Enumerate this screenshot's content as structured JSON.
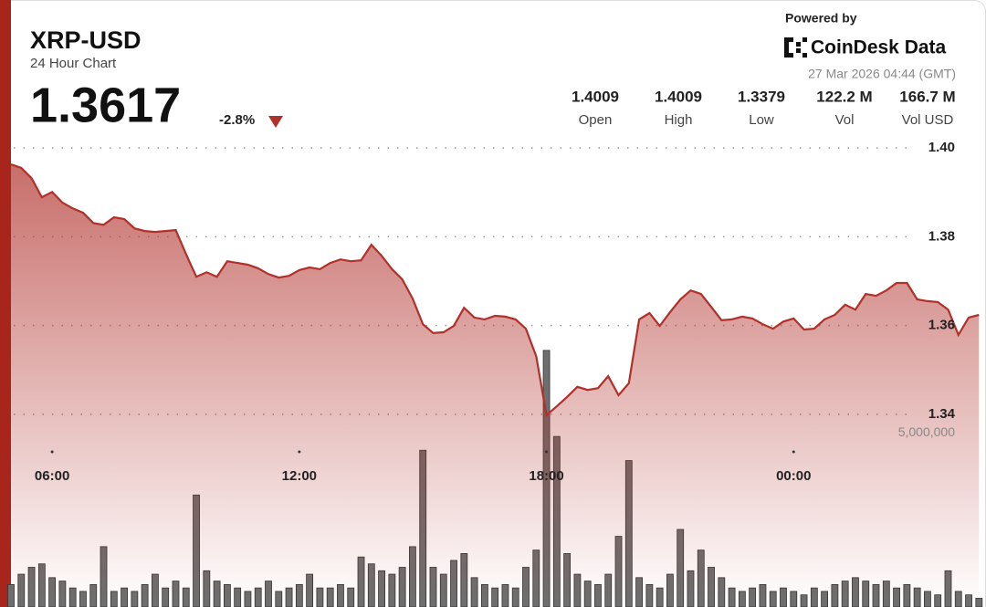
{
  "chart_data": {
    "type": "line",
    "title": "XRP-USD",
    "subtitle": "24 Hour Chart",
    "price": 1.3617,
    "change": "-2.8%",
    "powered_by": "Powered by",
    "brand": "CoinDesk Data",
    "timestamp": "27 Mar 2026 04:44 (GMT)",
    "stats": [
      {
        "value": "1.4009",
        "label": "Open"
      },
      {
        "value": "1.4009",
        "label": "High"
      },
      {
        "value": "1.3379",
        "label": "Low"
      },
      {
        "value": "122.2 M",
        "label": "Vol"
      },
      {
        "value": "166.7 M",
        "label": "Vol USD"
      }
    ],
    "categories": [
      null,
      null,
      null,
      null,
      "06:00",
      null,
      null,
      null,
      null,
      null,
      null,
      null,
      null,
      null,
      null,
      null,
      null,
      null,
      null,
      null,
      null,
      null,
      null,
      null,
      null,
      null,
      null,
      null,
      "12:00",
      null,
      null,
      null,
      null,
      null,
      null,
      null,
      null,
      null,
      null,
      null,
      null,
      null,
      null,
      null,
      null,
      null,
      null,
      null,
      null,
      null,
      null,
      null,
      "18:00",
      null,
      null,
      null,
      null,
      null,
      null,
      null,
      null,
      null,
      null,
      null,
      null,
      null,
      null,
      null,
      null,
      null,
      null,
      null,
      null,
      null,
      null,
      null,
      "00:00",
      null,
      null,
      null,
      null,
      null,
      null,
      null,
      null,
      null,
      null,
      null,
      null,
      null,
      null,
      null,
      null,
      null,
      null
    ],
    "series": [
      {
        "name": "Price",
        "color": "#b0302a",
        "values": [
          1.3963,
          1.3955,
          1.3932,
          1.3889,
          1.3901,
          1.3877,
          1.3864,
          1.3854,
          1.3831,
          1.3827,
          1.3844,
          1.384,
          1.3819,
          1.3813,
          1.3811,
          1.3813,
          1.3815,
          1.3761,
          1.371,
          1.372,
          1.371,
          1.3745,
          1.3741,
          1.3737,
          1.3729,
          1.3716,
          1.3708,
          1.3712,
          1.3725,
          1.3731,
          1.3727,
          1.3741,
          1.3749,
          1.3745,
          1.3747,
          1.3782,
          1.3757,
          1.3727,
          1.3704,
          1.3661,
          1.3603,
          1.3583,
          1.3585,
          1.3599,
          1.364,
          1.3618,
          1.3614,
          1.3622,
          1.362,
          1.3614,
          1.3593,
          1.3531,
          1.3398,
          1.3418,
          1.3439,
          1.3462,
          1.3455,
          1.3459,
          1.3486,
          1.3443,
          1.347,
          1.3614,
          1.3628,
          1.3599,
          1.363,
          1.3659,
          1.3679,
          1.3671,
          1.3642,
          1.3612,
          1.3614,
          1.362,
          1.3616,
          1.3603,
          1.3593,
          1.3609,
          1.3616,
          1.3591,
          1.3593,
          1.3614,
          1.3624,
          1.3647,
          1.3636,
          1.3671,
          1.3667,
          1.3679,
          1.3696,
          1.3696,
          1.3659,
          1.3655,
          1.3653,
          1.3636,
          1.3579,
          1.3618,
          1.3624
        ]
      },
      {
        "name": "Volume",
        "color": "#6e6e6e",
        "axis": "y2",
        "type": "bar",
        "values": [
          600000,
          900000,
          1100000,
          1200000,
          800000,
          700000,
          500000,
          400000,
          600000,
          1700000,
          400000,
          500000,
          400000,
          600000,
          900000,
          500000,
          700000,
          500000,
          3200000,
          1000000,
          700000,
          600000,
          500000,
          400000,
          500000,
          700000,
          400000,
          500000,
          600000,
          900000,
          500000,
          500000,
          600000,
          500000,
          1400000,
          1200000,
          1000000,
          900000,
          1100000,
          1700000,
          4500000,
          1100000,
          900000,
          1300000,
          1500000,
          800000,
          600000,
          500000,
          600000,
          500000,
          1100000,
          1600000,
          7400000,
          4900000,
          1500000,
          900000,
          700000,
          600000,
          900000,
          2000000,
          4200000,
          800000,
          600000,
          500000,
          900000,
          2200000,
          1000000,
          1600000,
          1100000,
          800000,
          500000,
          400000,
          500000,
          600000,
          400000,
          500000,
          400000,
          300000,
          500000,
          400000,
          600000,
          700000,
          800000,
          700000,
          600000,
          700000,
          500000,
          600000,
          500000,
          400000,
          300000,
          1000000,
          400000,
          300000,
          200000
        ]
      }
    ],
    "ylim": [
      1.297,
      1.4025
    ],
    "yticks": [
      {
        "value": 1.4,
        "label": "1.40"
      },
      1.38,
      1.36,
      1.34
    ],
    "y2lim": [
      0,
      13600000
    ],
    "y2ticks": [
      {
        "value": 5000000,
        "label": "5,000,000"
      }
    ],
    "grid": true
  }
}
